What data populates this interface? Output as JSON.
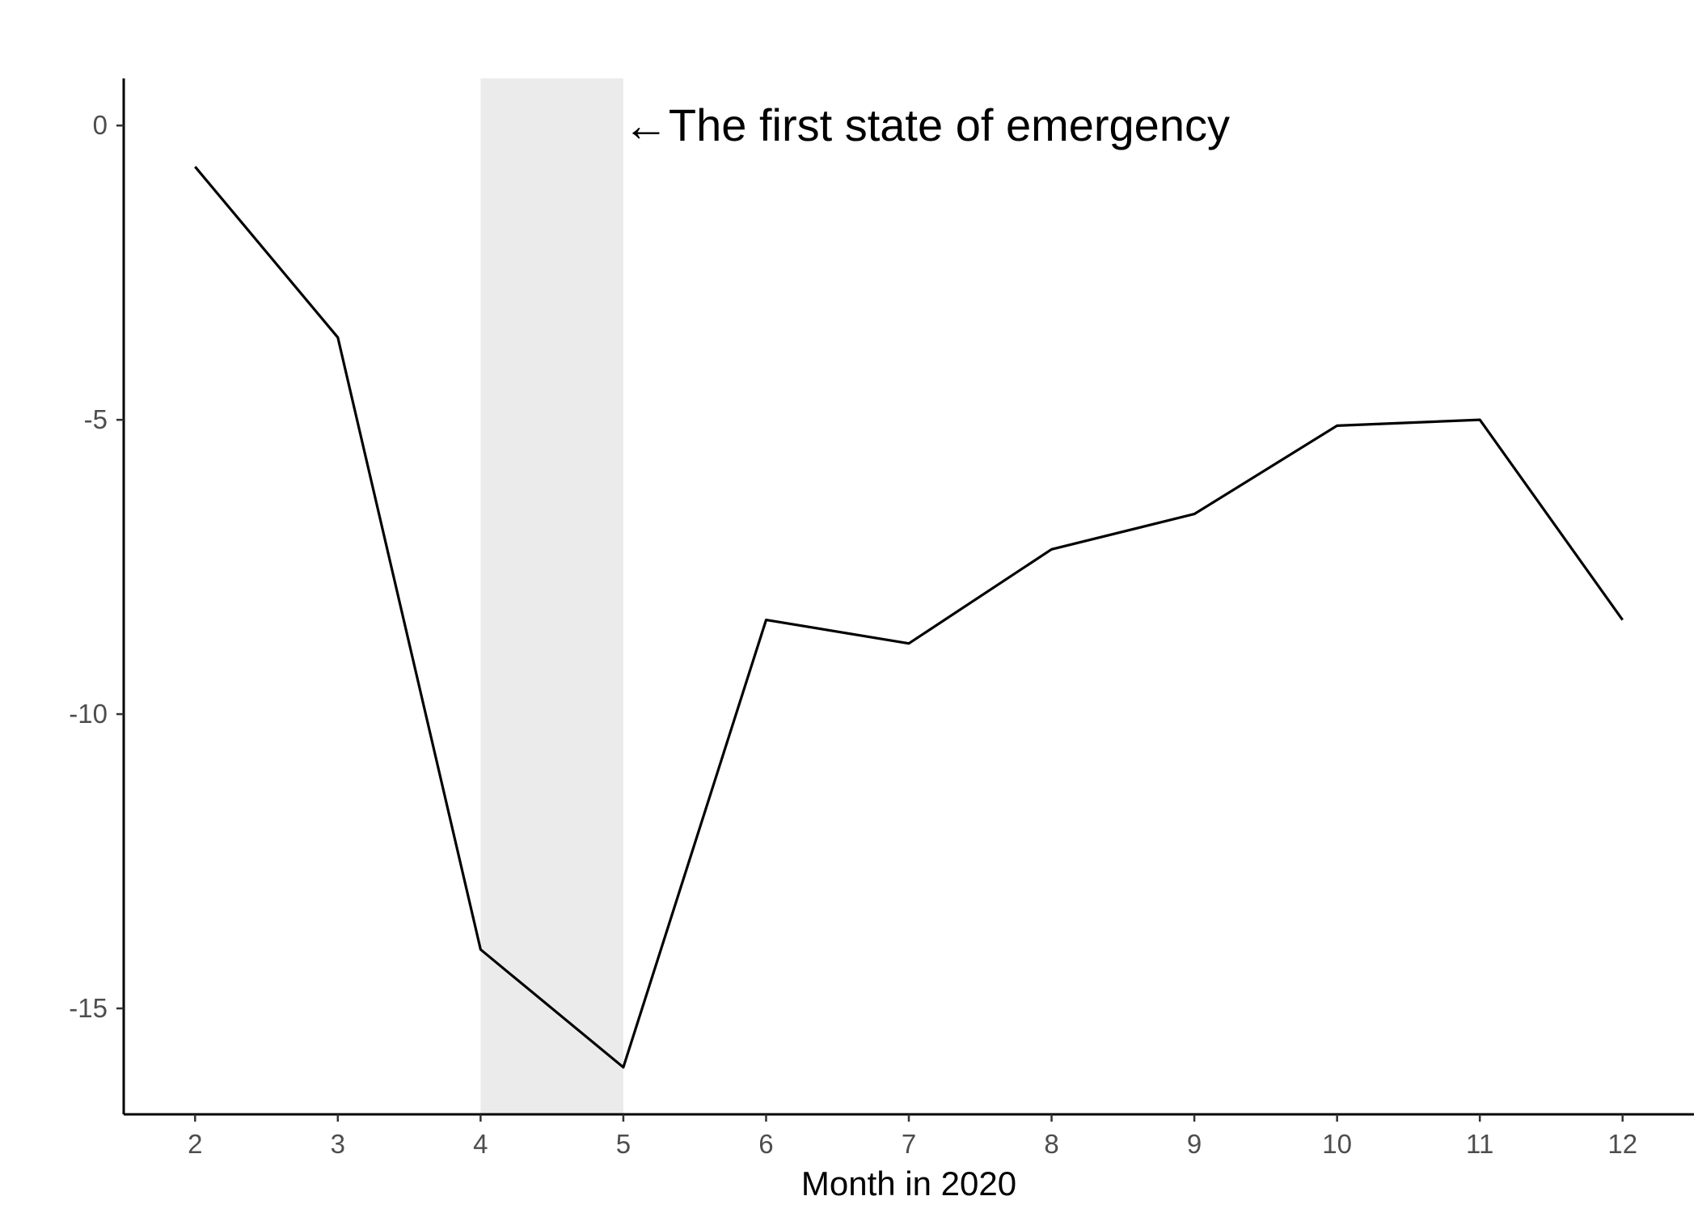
{
  "chart_data": {
    "type": "line",
    "title": "",
    "xlabel": "Month in 2020",
    "ylabel": "",
    "x": [
      2,
      3,
      4,
      5,
      6,
      7,
      8,
      9,
      10,
      11,
      12
    ],
    "series": [
      {
        "values": [
          -0.7,
          -3.6,
          -14.0,
          -16.0,
          -8.4,
          -8.8,
          -7.2,
          -6.6,
          -5.1,
          -5.0,
          -8.4
        ]
      }
    ],
    "xticks": [
      2,
      3,
      4,
      5,
      6,
      7,
      8,
      9,
      10,
      11,
      12
    ],
    "yticks": [
      0,
      -5,
      -10,
      -15
    ],
    "xlim": [
      1.5,
      12.5
    ],
    "ylim": [
      -16.8,
      0.8
    ],
    "grid": false,
    "shaded_region": {
      "x_start": 4,
      "x_end": 5,
      "color": "#ebebeb"
    },
    "annotation": {
      "text": "←The first state of emergency",
      "x": 5,
      "y": 0
    },
    "line_color": "#000000"
  }
}
